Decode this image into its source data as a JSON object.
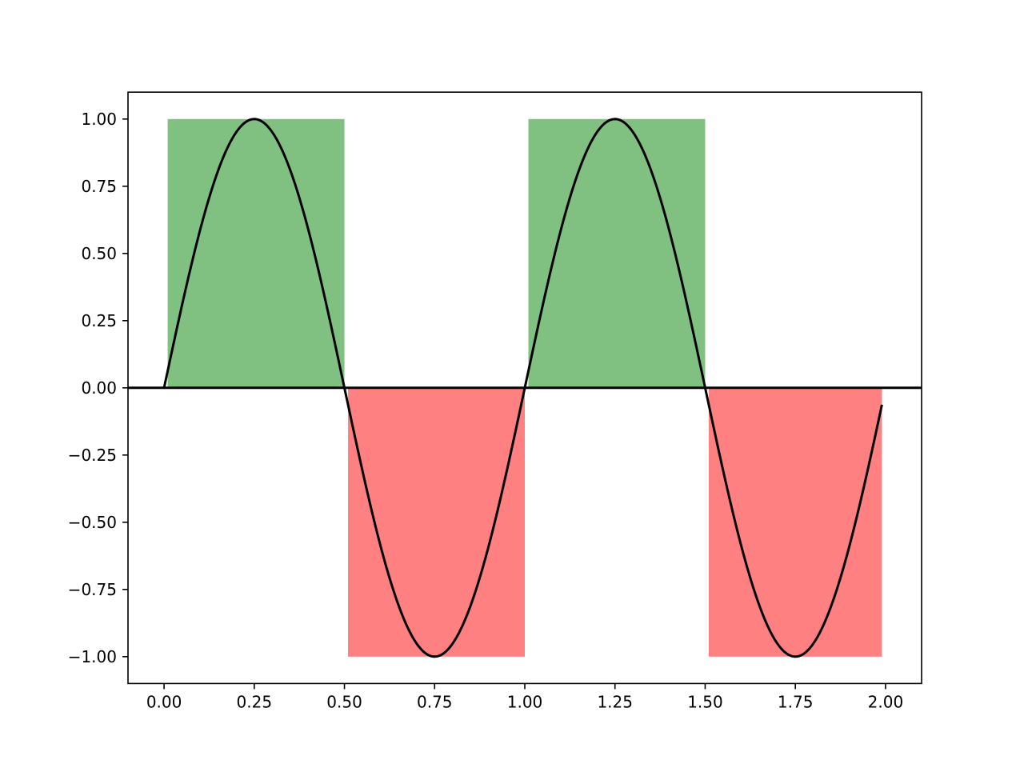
{
  "chart_data": {
    "type": "area",
    "title": "",
    "xlabel": "",
    "ylabel": "",
    "xlim": [
      -0.1,
      2.1
    ],
    "ylim": [
      -1.1,
      1.1
    ],
    "grid": false,
    "legend": "none",
    "x_ticks": [
      0.0,
      0.25,
      0.5,
      0.75,
      1.0,
      1.25,
      1.5,
      1.75,
      2.0
    ],
    "x_tick_labels": [
      "0.00",
      "0.25",
      "0.50",
      "0.75",
      "1.00",
      "1.25",
      "1.50",
      "1.75",
      "2.00"
    ],
    "y_ticks": [
      1.0,
      0.75,
      0.5,
      0.25,
      0.0,
      -0.25,
      -0.5,
      -0.75,
      -1.0
    ],
    "y_tick_labels": [
      "1.00",
      "0.75",
      "0.50",
      "0.25",
      "0.00",
      "−0.25",
      "−0.50",
      "−0.75",
      "−1.00"
    ],
    "curve": {
      "function": "sin(2*pi*x)",
      "x_start": 0.0,
      "x_end": 1.99,
      "color": "#000000"
    },
    "regions": [
      {
        "x_start": 0.01,
        "x_end": 0.5,
        "value": 1.0,
        "color": "#80c080"
      },
      {
        "x_start": 0.51,
        "x_end": 1.0,
        "value": -1.0,
        "color": "#ff8080"
      },
      {
        "x_start": 1.01,
        "x_end": 1.5,
        "value": 1.0,
        "color": "#80c080"
      },
      {
        "x_start": 1.51,
        "x_end": 1.99,
        "value": -1.0,
        "color": "#ff8080"
      }
    ],
    "hline": {
      "y": 0.0,
      "color": "#000000"
    }
  }
}
